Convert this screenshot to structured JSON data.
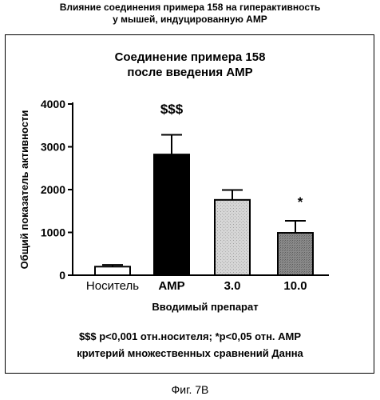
{
  "header_title": "Влияние соединения примера 158 на гиперактивность\nу мышей, индуцированную АМР",
  "figure_caption": "Фиг. 7В",
  "footnote": "$$$ р<0,001 отн.носителя; *р<0,05 отн. АМР\nкритерий множественных сравнений Данна",
  "chart_data": {
    "type": "bar",
    "title": "Соединение примера 158\nпосле введения АМР",
    "xlabel": "Вводимый препарат",
    "ylabel": "Общий показатель активности",
    "categories": [
      "Носитель",
      "АМР",
      "3.0",
      "10.0"
    ],
    "values": [
      200,
      2820,
      1760,
      990
    ],
    "errors": [
      40,
      460,
      230,
      280
    ],
    "annotations": [
      "",
      "$$$",
      "",
      "*"
    ],
    "ylim": [
      0,
      4000
    ],
    "yticks": [
      "0",
      "1000",
      "2000",
      "3000",
      "4000"
    ],
    "grid": false,
    "bar_fills": [
      "#ffffff",
      "#000000",
      "#d6d6d6",
      "#8a8a8a"
    ]
  }
}
